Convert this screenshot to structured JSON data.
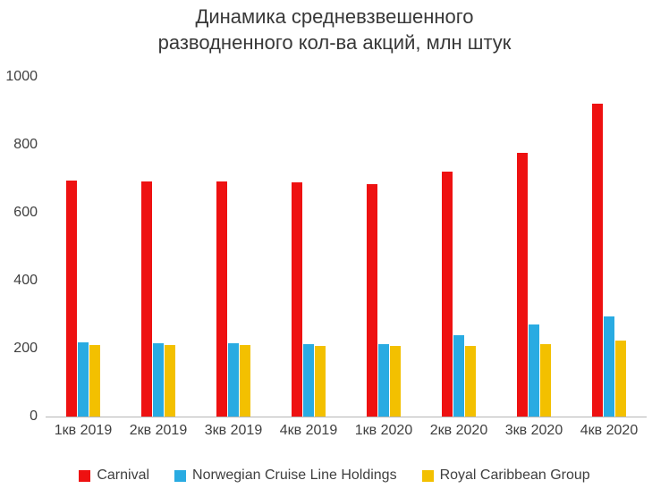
{
  "title": {
    "line1": "Динамика средневзвешенного",
    "line2": "разводненного кол-ва акций, млн штук"
  },
  "chart_data": {
    "type": "bar",
    "title": "Динамика средневзвешенного разводненного кол-ва акций, млн штук",
    "categories": [
      "1кв 2019",
      "2кв 2019",
      "3кв 2019",
      "4кв 2019",
      "1кв 2020",
      "2кв 2020",
      "3кв 2020",
      "4кв 2020"
    ],
    "series": [
      {
        "name": "Carnival",
        "color": "#ee1111",
        "values": [
          695,
          692,
          691,
          689,
          684,
          722,
          776,
          921
        ]
      },
      {
        "name": "Norwegian Cruise Line Holdings",
        "color": "#29abe2",
        "values": [
          218,
          216,
          215,
          213,
          213,
          240,
          271,
          294
        ]
      },
      {
        "name": "Royal Caribbean Group",
        "color": "#f3c000",
        "values": [
          210,
          210,
          210,
          209,
          208,
          209,
          214,
          224
        ]
      }
    ],
    "xlabel": "",
    "ylabel": "",
    "ylim": [
      0,
      1000
    ],
    "yticks": [
      0,
      200,
      400,
      600,
      800,
      1000
    ],
    "grid": false,
    "legend_position": "bottom"
  }
}
